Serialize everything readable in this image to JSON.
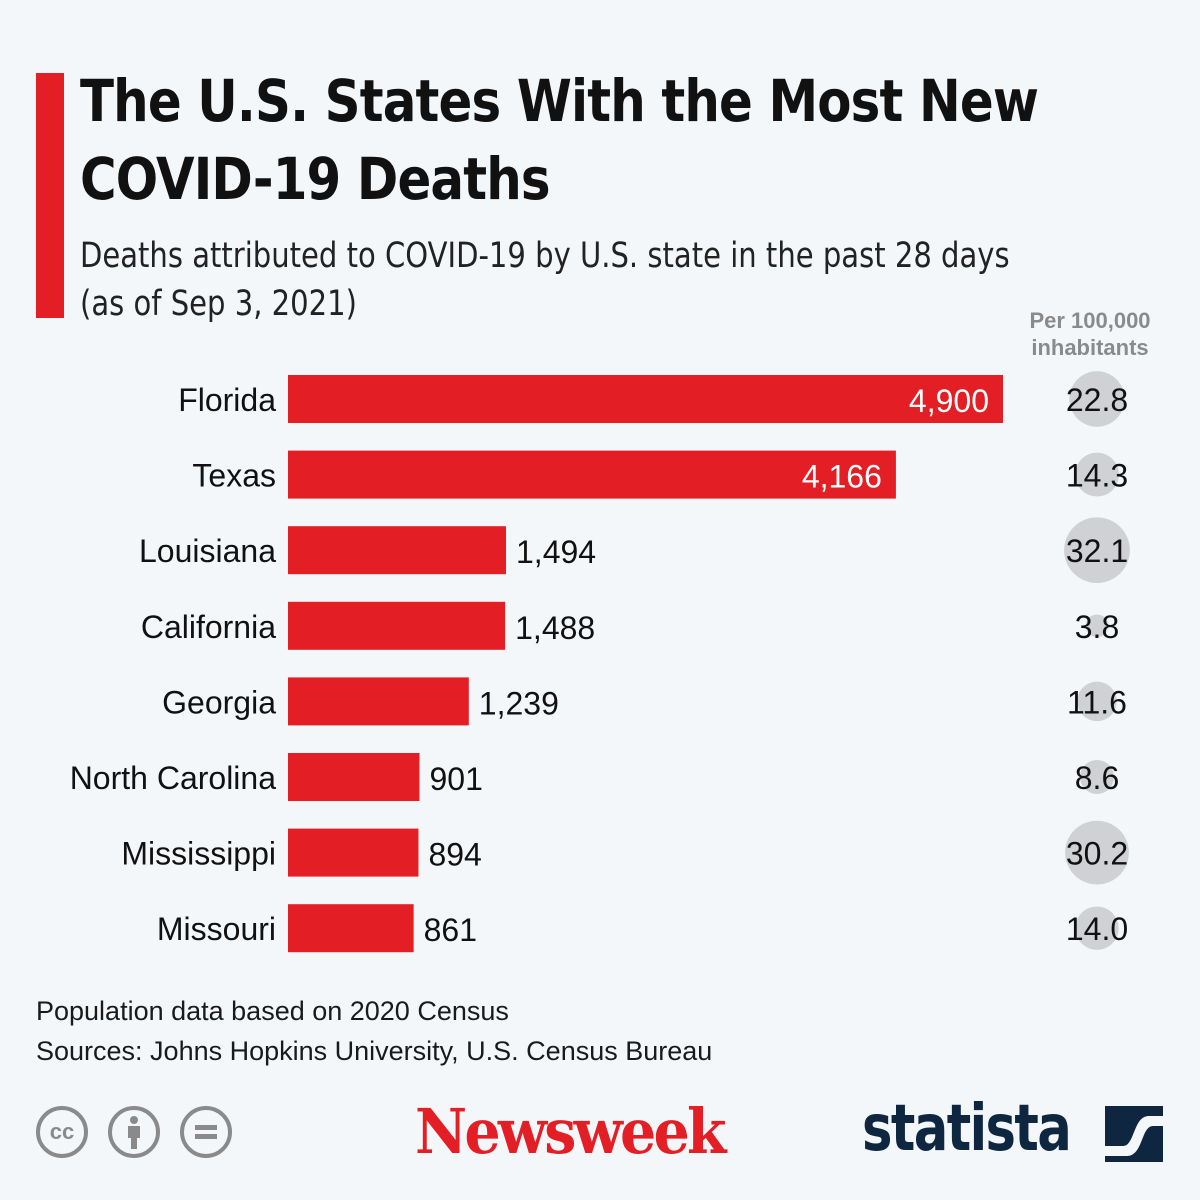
{
  "title": "The U.S. States With the Most New COVID-19 Deaths",
  "subtitle_line1": "Deaths attributed to COVID-19 by U.S. state in the past 28 days",
  "subtitle_line2": "(as of Sep 3, 2021)",
  "per_capita_header_line1": "Per 100,000",
  "per_capita_header_line2": "inhabitants",
  "footnote": "Population data based on 2020 Census",
  "sources": "Sources: Johns Hopkins University, U.S. Census Bureau",
  "logos": {
    "newsweek": "Newsweek",
    "statista": "statista"
  },
  "license_icons": [
    "cc-icon",
    "attribution-icon",
    "no-derivatives-icon"
  ],
  "colors": {
    "bar": "#e31e24",
    "bubble": "#cfd1d4",
    "accent": "#e31e24",
    "background": "#f4f7fa"
  },
  "chart_data": {
    "type": "bar",
    "orientation": "horizontal",
    "categories": [
      "Florida",
      "Texas",
      "Louisiana",
      "California",
      "Georgia",
      "North Carolina",
      "Mississippi",
      "Missouri"
    ],
    "values": [
      4900,
      4166,
      1494,
      1488,
      1239,
      901,
      894,
      861
    ],
    "value_labels": [
      "4,900",
      "4,166",
      "1,494",
      "1,488",
      "1,239",
      "901",
      "894",
      "861"
    ],
    "per_100k": [
      22.8,
      14.3,
      32.1,
      3.8,
      11.6,
      8.6,
      30.2,
      14.0
    ],
    "per_100k_labels": [
      "22.8",
      "14.3",
      "32.1",
      "3.8",
      "11.6",
      "8.6",
      "30.2",
      "14.0"
    ],
    "xlim": [
      0,
      4900
    ],
    "grid": false,
    "legend": "none"
  }
}
